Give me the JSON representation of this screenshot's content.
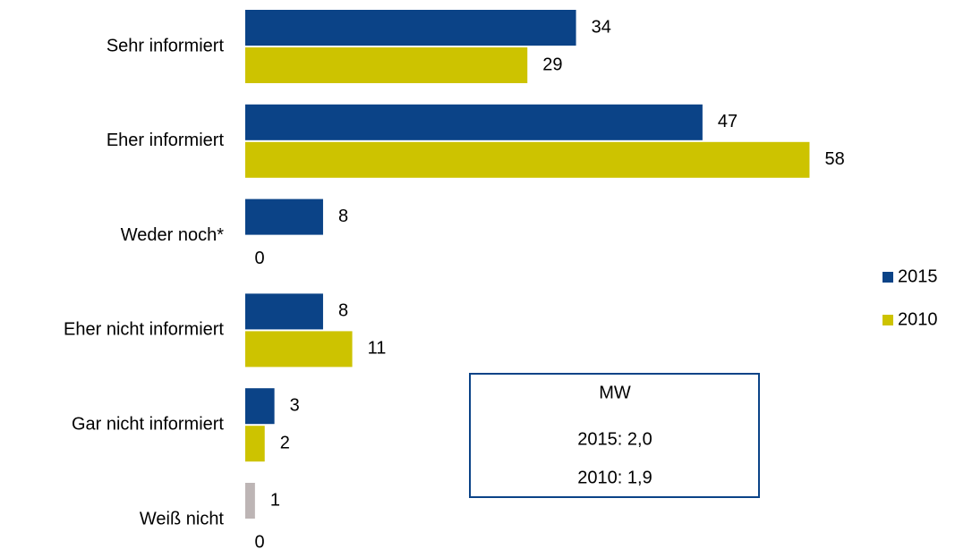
{
  "chart_data": {
    "type": "bar",
    "orientation": "horizontal",
    "categories": [
      "Sehr informiert",
      "Eher informiert",
      "Weder noch*",
      "Eher nicht informiert",
      "Gar nicht informiert",
      "Weiß nicht"
    ],
    "series": [
      {
        "name": "2015",
        "color": "#0b4387",
        "colors": [
          "#0b4387",
          "#0b4387",
          "#0b4387",
          "#0b4387",
          "#0b4387",
          "#bdb5b5"
        ],
        "values": [
          34,
          47,
          8,
          8,
          3,
          1
        ]
      },
      {
        "name": "2010",
        "color": "#cdc300",
        "values": [
          29,
          58,
          0,
          11,
          2,
          0
        ]
      }
    ],
    "legend": "right",
    "annotation": {
      "title": "MW",
      "lines": [
        "2015: 2,0",
        "2010: 1,9"
      ]
    }
  }
}
